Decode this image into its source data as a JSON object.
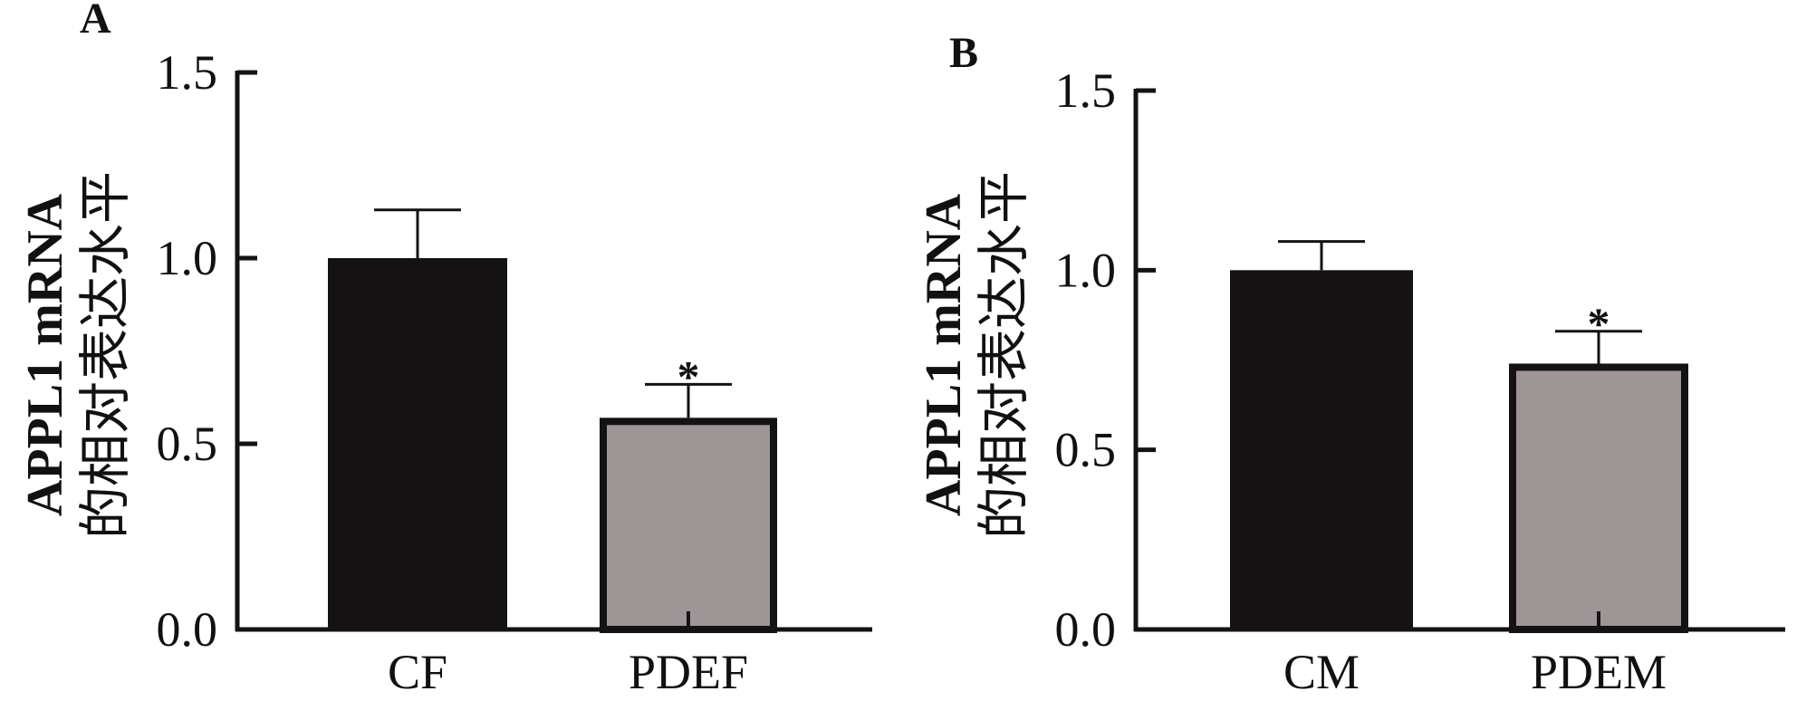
{
  "chart_data": [
    {
      "type": "bar",
      "panel_label": "A",
      "title": "",
      "xlabel": "",
      "ylabel_line1": "APPL1 mRNA",
      "ylabel_line2": "的相对表达水平",
      "categories": [
        "CF",
        "PDEF"
      ],
      "values": [
        1.0,
        0.57
      ],
      "error_upper": [
        1.13,
        0.66
      ],
      "significance": [
        "",
        "*"
      ],
      "colors": [
        "#151213",
        "#9e9596"
      ],
      "ylim": [
        0,
        1.5
      ],
      "yticks": [
        "0.0",
        "0.5",
        "1.0",
        "1.5"
      ],
      "grid": false
    },
    {
      "type": "bar",
      "panel_label": "B",
      "title": "",
      "xlabel": "",
      "ylabel_line1": "APPL1 mRNA",
      "ylabel_line2": "的相对表达水平",
      "categories": [
        "CM",
        "PDEM"
      ],
      "values": [
        1.0,
        0.74
      ],
      "error_upper": [
        1.08,
        0.83
      ],
      "significance": [
        "",
        "*"
      ],
      "colors": [
        "#151213",
        "#9e9596"
      ],
      "ylim": [
        0,
        1.5
      ],
      "yticks": [
        "0.0",
        "0.5",
        "1.0",
        "1.5"
      ],
      "grid": false
    }
  ]
}
